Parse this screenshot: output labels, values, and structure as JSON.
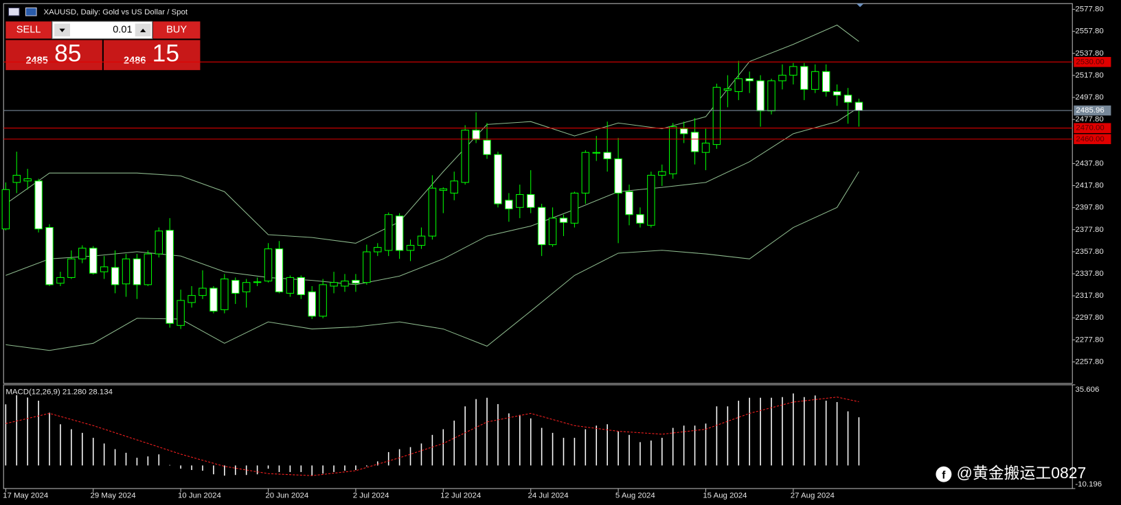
{
  "chart_data": [
    {
      "type": "candlestick",
      "title": "XAUUSD, Daily:  Gold vs US Dollar / Spot",
      "categories": [
        "17 May 2024",
        null,
        null,
        null,
        null,
        null,
        null,
        null,
        "29 May 2024",
        null,
        null,
        null,
        null,
        null,
        null,
        null,
        "10 Jun 2024",
        null,
        null,
        null,
        null,
        null,
        null,
        null,
        "20 Jun 2024",
        null,
        null,
        null,
        null,
        null,
        null,
        null,
        "2 Jul 2024",
        null,
        null,
        null,
        null,
        null,
        null,
        null,
        "12 Jul 2024",
        null,
        null,
        null,
        null,
        null,
        null,
        null,
        "24 Jul 2024",
        null,
        null,
        null,
        null,
        null,
        null,
        null,
        "5 Aug 2024",
        null,
        null,
        null,
        null,
        null,
        null,
        null,
        "15 Aug 2024",
        null,
        null,
        null,
        null,
        null,
        null,
        null,
        "27 Aug 2024",
        null,
        null,
        null,
        null,
        null,
        null
      ],
      "open": [
        2378.5,
        2420.7,
        2422,
        2422.0,
        2379.8,
        2329.2,
        2334.4,
        2351.3,
        2361.0,
        2339.6,
        2343.5,
        2328.6,
        2351.3,
        2327.9,
        2355.8,
        2377.2,
        2290.9,
        2311.7,
        2318.1,
        2324.7,
        2305.2,
        2331.8,
        2321.4,
        2329.9,
        2331.2,
        2360.4,
        2320.1,
        2334.4,
        2321.4,
        2299.3,
        2326.6,
        2326.6,
        2331.8,
        2329.9,
        2357.7,
        2359.0,
        2390.2,
        2359.0,
        2363.6,
        2372.0,
        2413.5,
        2411.0,
        2420.7,
        2468.1,
        2459.0,
        2446.0,
        2404.5,
        2398.0,
        2409.7,
        2398.0,
        2364.2,
        2388.3,
        2383.7,
        2411.0,
        2447.3,
        2447.9,
        2442.1,
        2412.3,
        2391.5,
        2381.8,
        2427.2,
        2428.5,
        2469.4,
        2466.2,
        2447.9,
        2455.1,
        2504.4,
        2503.1,
        2514.8,
        2512.9,
        2485.6,
        2512.9,
        2518.0,
        2525.9,
        2505.1,
        2521.3,
        2503.1,
        2499.9,
        2493.4
      ],
      "high": [
        2420.7,
        2448.6,
        2433.0,
        2424,
        2382.8,
        2339.6,
        2359.0,
        2363.6,
        2362.9,
        2353.9,
        2359.0,
        2355.8,
        2355.8,
        2359.0,
        2379.8,
        2388.3,
        2323.4,
        2326.6,
        2340.9,
        2326.6,
        2337.6,
        2334.4,
        2333.1,
        2334.4,
        2365.6,
        2367.5,
        2336.3,
        2336.3,
        2326.6,
        2333.1,
        2339.6,
        2337.6,
        2337.6,
        2364.2,
        2365.6,
        2393.4,
        2392.8,
        2368.8,
        2379.8,
        2427.2,
        2416.2,
        2430.5,
        2472.6,
        2484.3,
        2474.6,
        2448.6,
        2411.0,
        2418.7,
        2431.8,
        2401.3,
        2398.0,
        2391.5,
        2412.3,
        2449.9,
        2462.9,
        2475.9,
        2461.0,
        2418.7,
        2398.0,
        2430.5,
        2436.9,
        2474.6,
        2475.9,
        2479.1,
        2469.4,
        2510.3,
        2518.0,
        2531.0,
        2521.3,
        2518.0,
        2514.8,
        2527.8,
        2529.1,
        2529.1,
        2527.8,
        2527.8,
        2509.6,
        2506.4,
        2496.7
      ],
      "low": [
        2377.2,
        2411.0,
        2414.2,
        2375.3,
        2326.6,
        2326.6,
        2333.1,
        2347.4,
        2337.0,
        2333.1,
        2320.1,
        2316.9,
        2314.9,
        2326.6,
        2352.6,
        2288.9,
        2287.7,
        2307.1,
        2314.9,
        2301.9,
        2301.9,
        2310.4,
        2307.1,
        2326.6,
        2329.9,
        2320.1,
        2316.9,
        2314.9,
        2296.7,
        2297.4,
        2320.1,
        2321.4,
        2321.4,
        2327.9,
        2353.9,
        2353.9,
        2351.3,
        2349.3,
        2360.4,
        2368.8,
        2392.8,
        2404.5,
        2418.7,
        2456.4,
        2442.1,
        2398.0,
        2385.0,
        2388.3,
        2392.8,
        2353.9,
        2362.3,
        2372.0,
        2379.8,
        2401.3,
        2440.2,
        2430.5,
        2365.6,
        2381.8,
        2379.8,
        2379.8,
        2417.5,
        2424.0,
        2456.4,
        2437.0,
        2431.8,
        2451.2,
        2488.9,
        2495.4,
        2501.8,
        2471.3,
        2482.4,
        2505.1,
        2509.6,
        2495.4,
        2501.8,
        2498.6,
        2490.2,
        2474.0,
        2471.3
      ],
      "close": [
        2414.2,
        2427.2,
        2424,
        2378.5,
        2327.9,
        2334.4,
        2351.3,
        2361.0,
        2338.3,
        2344.1,
        2327.9,
        2351.3,
        2327.9,
        2355.8,
        2376.6,
        2292.8,
        2313.6,
        2318.1,
        2324.7,
        2303.9,
        2333.1,
        2320.1,
        2329.9,
        2330.5,
        2360.4,
        2321.4,
        2334.4,
        2318.8,
        2299.3,
        2327.9,
        2329.9,
        2331.2,
        2329.2,
        2357.7,
        2361.7,
        2391.5,
        2359.0,
        2363.6,
        2372.0,
        2415.5,
        2414.9,
        2422.0,
        2468.1,
        2459.6,
        2446.0,
        2401.3,
        2396.7,
        2409.7,
        2398.0,
        2364.2,
        2388.3,
        2384.4,
        2411.0,
        2447.9,
        2447.9,
        2442.1,
        2411.0,
        2391.5,
        2383.7,
        2427.2,
        2430.5,
        2471.3,
        2464.9,
        2448.6,
        2456.4,
        2507.0,
        2505.7,
        2514.8,
        2512.9,
        2485.6,
        2512.9,
        2518.0,
        2525.9,
        2505.1,
        2521.3,
        2503.1,
        2499.9,
        2493.4,
        2485.96
      ],
      "outline_color": "#00ff00",
      "up_fill": "#000000",
      "down_fill": "#ffffff",
      "bands": {
        "color": "#8fbc8f",
        "x": [
          0,
          4,
          8,
          12,
          16,
          20,
          24,
          28,
          32,
          36,
          40,
          44,
          48,
          52,
          56,
          60,
          64,
          68,
          72,
          76,
          78
        ],
        "upper": [
          2401.2,
          2429.2,
          2429.2,
          2429.2,
          2426.6,
          2412.3,
          2373.3,
          2370.7,
          2365.5,
          2385.0,
          2430.5,
          2473.3,
          2475.9,
          2462.9,
          2474.6,
          2469.4,
          2480.4,
          2530.4,
          2546.0,
          2563.5,
          2548.6
        ],
        "middle": [
          2336.3,
          2351.3,
          2353.9,
          2357.8,
          2353.9,
          2339.6,
          2334.4,
          2331.8,
          2327.9,
          2335.7,
          2351.3,
          2372.0,
          2381.1,
          2396.1,
          2412.3,
          2416.2,
          2420.7,
          2439.5,
          2464.9,
          2475.9,
          2488.9
        ],
        "lower": [
          2273.4,
          2268.2,
          2274.7,
          2297.4,
          2296.7,
          2274.7,
          2294.1,
          2287.7,
          2289.6,
          2294.1,
          2287.7,
          2272.1,
          2303.9,
          2336.3,
          2356.5,
          2359.1,
          2355.8,
          2351.3,
          2379.8,
          2398.0,
          2430.5
        ]
      },
      "levels": [
        {
          "value": 2530.0,
          "label": "2530.00",
          "color": "#e00000",
          "text_color": "#5a0000"
        },
        {
          "value": 2485.96,
          "label": "2485.96",
          "color": "#778899",
          "text_color": "#ffffff"
        },
        {
          "value": 2470.0,
          "label": "2470.00",
          "color": "#e00000",
          "text_color": "#5a0000"
        },
        {
          "value": 2460.0,
          "label": "2460.00",
          "color": "#e00000",
          "text_color": "#5a0000"
        }
      ],
      "ylim": [
        2238.3,
        2583.0
      ],
      "yticks": [
        {
          "value": 2577.8,
          "label": "2577.80"
        },
        {
          "value": 2557.8,
          "label": "2557.80"
        },
        {
          "value": 2537.8,
          "label": "2537.80"
        },
        {
          "value": 2517.8,
          "label": "2517.80"
        },
        {
          "value": 2497.8,
          "label": "2497.80"
        },
        {
          "value": 2477.8,
          "label": "2477.80"
        },
        {
          "value": 2437.8,
          "label": "2437.80"
        },
        {
          "value": 2417.8,
          "label": "2417.80"
        },
        {
          "value": 2397.8,
          "label": "2397.80"
        },
        {
          "value": 2377.8,
          "label": "2377.80"
        },
        {
          "value": 2357.8,
          "label": "2357.80"
        },
        {
          "value": 2337.8,
          "label": "2337.80"
        },
        {
          "value": 2317.8,
          "label": "2317.80"
        },
        {
          "value": 2297.8,
          "label": "2297.80"
        },
        {
          "value": 2277.8,
          "label": "2277.80"
        },
        {
          "value": 2257.8,
          "label": "2257.80"
        }
      ]
    },
    {
      "type": "macd",
      "title": "MACD(12,26,9) 21.280 28.134",
      "values": [
        27,
        31,
        30,
        28.6,
        23.3,
        18.2,
        16,
        14.4,
        12.2,
        9.7,
        7.2,
        5.6,
        3.4,
        4,
        4.9,
        0.2,
        -1.4,
        -2,
        -2.3,
        -3.9,
        -4.5,
        -4.2,
        -4.2,
        -3.9,
        -1.4,
        -2.9,
        -2.9,
        -2.9,
        -4.5,
        -3.6,
        -2.9,
        -2.3,
        -2,
        -0.4,
        1.8,
        5.9,
        7.2,
        8.1,
        9.7,
        13.5,
        16,
        19.8,
        26.1,
        29.3,
        29.9,
        27.1,
        23,
        22.3,
        20.8,
        16.6,
        14.4,
        12.2,
        12.2,
        16,
        17.6,
        18.2,
        15,
        13.5,
        10.3,
        11,
        12.2,
        16.6,
        17.6,
        17.6,
        18.5,
        26.1,
        26.1,
        28.6,
        29.9,
        29.9,
        29.9,
        30.2,
        31.8,
        30.2,
        30.9,
        28.6,
        28,
        23.9,
        21.28
      ],
      "color": "#ffffff",
      "signal": {
        "color": "#ff2020",
        "x": [
          0,
          4,
          8,
          12,
          16,
          20,
          24,
          28,
          32,
          36,
          40,
          44,
          48,
          52,
          56,
          60,
          64,
          68,
          72,
          76,
          78
        ],
        "values": [
          18.5,
          23.0,
          17.6,
          11.3,
          5.0,
          -0.4,
          -3.6,
          -4.5,
          -2.3,
          3.4,
          9.7,
          19.2,
          23.0,
          17.6,
          15.1,
          13.8,
          16.0,
          23.0,
          28.0,
          30.2,
          28.134
        ]
      },
      "ylim": [
        -10.196,
        35.606
      ],
      "yticks": [
        35.606,
        -10.196
      ]
    }
  ],
  "trade_panel": {
    "sell": "SELL",
    "buy": "BUY",
    "lot": "0.01",
    "sell_price": {
      "main": "2485",
      "pips": "85"
    },
    "buy_price": {
      "main": "2486",
      "pips": "15"
    }
  },
  "watermark": "@黄金搬运工0827"
}
